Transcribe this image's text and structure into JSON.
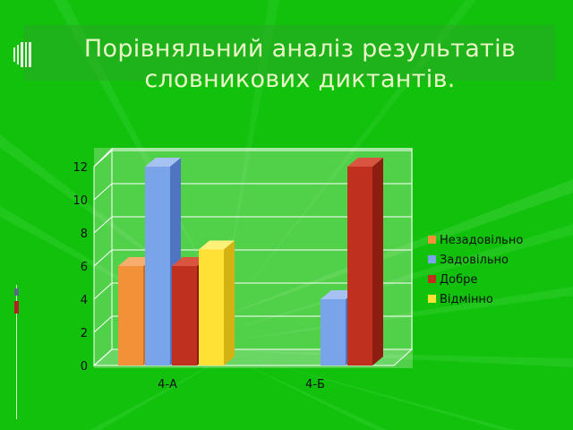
{
  "slide": {
    "title_line1": "Порівняльний аналіз результатів",
    "title_line2": "словникових диктантів."
  },
  "colors": {
    "background": "#11c10c",
    "title_text": "#eaf6c8"
  },
  "chart_data": {
    "type": "bar",
    "style": "3d-clustered-column",
    "title": "",
    "xlabel": "",
    "ylabel": "",
    "categories": [
      "4-А",
      "4-Б"
    ],
    "series": [
      {
        "name": "Незадовільно",
        "values": [
          6,
          0
        ],
        "color": "#f39139",
        "side": "#c9701f",
        "top": "#f7ad6d"
      },
      {
        "name": "Задовільно",
        "values": [
          12,
          4
        ],
        "color": "#7aa4ea",
        "side": "#4e74c2",
        "top": "#a6c2f2"
      },
      {
        "name": "Добре",
        "values": [
          6,
          12
        ],
        "color": "#c0301f",
        "side": "#8c1d10",
        "top": "#d9553f"
      },
      {
        "name": "Відмінно",
        "values": [
          7,
          0
        ],
        "color": "#ffe135",
        "side": "#d4b214",
        "top": "#fff07a"
      }
    ],
    "y_ticks": [
      "0",
      "2",
      "4",
      "6",
      "8",
      "10",
      "12"
    ],
    "ylim": [
      0,
      12
    ],
    "grid": true,
    "legend_position": "right"
  }
}
